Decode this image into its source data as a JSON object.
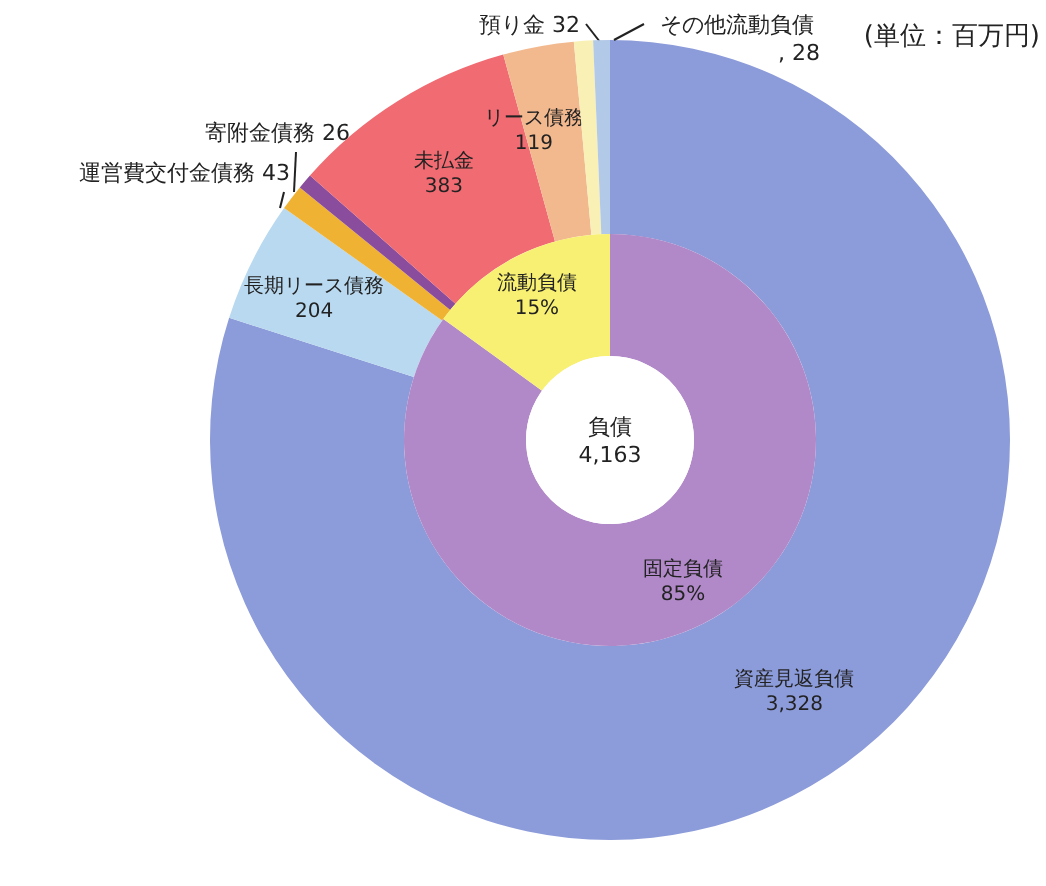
{
  "chart_data": [
    {
      "type": "donut",
      "annotations": [
        "(単位：百万円)"
      ],
      "categories": [
        "資産見返負債",
        "長期リース債務",
        "運営費交付金債務",
        "寄附金債務",
        "未払金",
        "リース債務",
        "預り金",
        "その他流動負債"
      ],
      "values": [
        3328,
        204,
        43,
        26,
        383,
        119,
        32,
        28
      ],
      "value_labels": [
        "3,328",
        "204",
        "43",
        "26",
        "383",
        "119",
        "32",
        ", 28"
      ],
      "colors": [
        "#8c9bd9",
        "#b9d9f0",
        "#f0b232",
        "#8a4c9c",
        "#f06b72",
        "#f2b98f",
        "#f8f0b4",
        "#b3c9e8"
      ]
    },
    {
      "type": "donut",
      "title": "負債",
      "annotations": [
        "4,163"
      ],
      "categories": [
        "固定負債",
        "流動負債"
      ],
      "values": [
        85,
        15
      ],
      "value_labels": [
        "85%",
        "15%"
      ],
      "colors": [
        "#b189c9",
        "#f8f072"
      ]
    }
  ]
}
